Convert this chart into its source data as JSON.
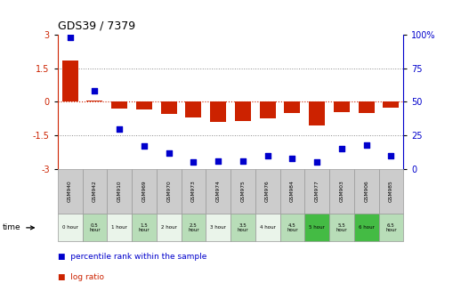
{
  "title": "GDS39 / 7379",
  "samples": [
    "GSM940",
    "GSM942",
    "GSM910",
    "GSM969",
    "GSM970",
    "GSM973",
    "GSM974",
    "GSM975",
    "GSM976",
    "GSM984",
    "GSM977",
    "GSM903",
    "GSM906",
    "GSM985"
  ],
  "time_labels": [
    "0 hour",
    "0.5\nhour",
    "1 hour",
    "1.5\nhour",
    "2 hour",
    "2.5\nhour",
    "3 hour",
    "3.5\nhour",
    "4 hour",
    "4.5\nhour",
    "5 hour",
    "5.5\nhour",
    "6 hour",
    "6.5\nhour"
  ],
  "log_ratio": [
    1.85,
    0.05,
    -0.3,
    -0.35,
    -0.55,
    -0.7,
    -0.9,
    -0.85,
    -0.75,
    -0.5,
    -1.05,
    -0.45,
    -0.5,
    -0.25
  ],
  "percentile": [
    98,
    58,
    30,
    17,
    12,
    5,
    6,
    6,
    10,
    8,
    5,
    15,
    18,
    10
  ],
  "bar_color": "#cc2200",
  "dot_color": "#0000cc",
  "bg_color": "#ffffff",
  "ylim_left": [
    -3,
    3
  ],
  "ylim_right": [
    0,
    100
  ],
  "yticks_left": [
    -3,
    -1.5,
    0,
    1.5,
    3
  ],
  "yticks_right": [
    0,
    25,
    50,
    75,
    100
  ],
  "ytick_labels_right": [
    "0",
    "25",
    "50",
    "75",
    "100%"
  ],
  "cell_colors": [
    "#eaf4ea",
    "#b8ddb8",
    "#eaf4ea",
    "#b8ddb8",
    "#eaf4ea",
    "#b8ddb8",
    "#eaf4ea",
    "#b8ddb8",
    "#eaf4ea",
    "#b8ddb8",
    "#44bb44",
    "#b8ddb8",
    "#44bb44",
    "#b8ddb8"
  ],
  "gsm_cell_color": "#cccccc"
}
